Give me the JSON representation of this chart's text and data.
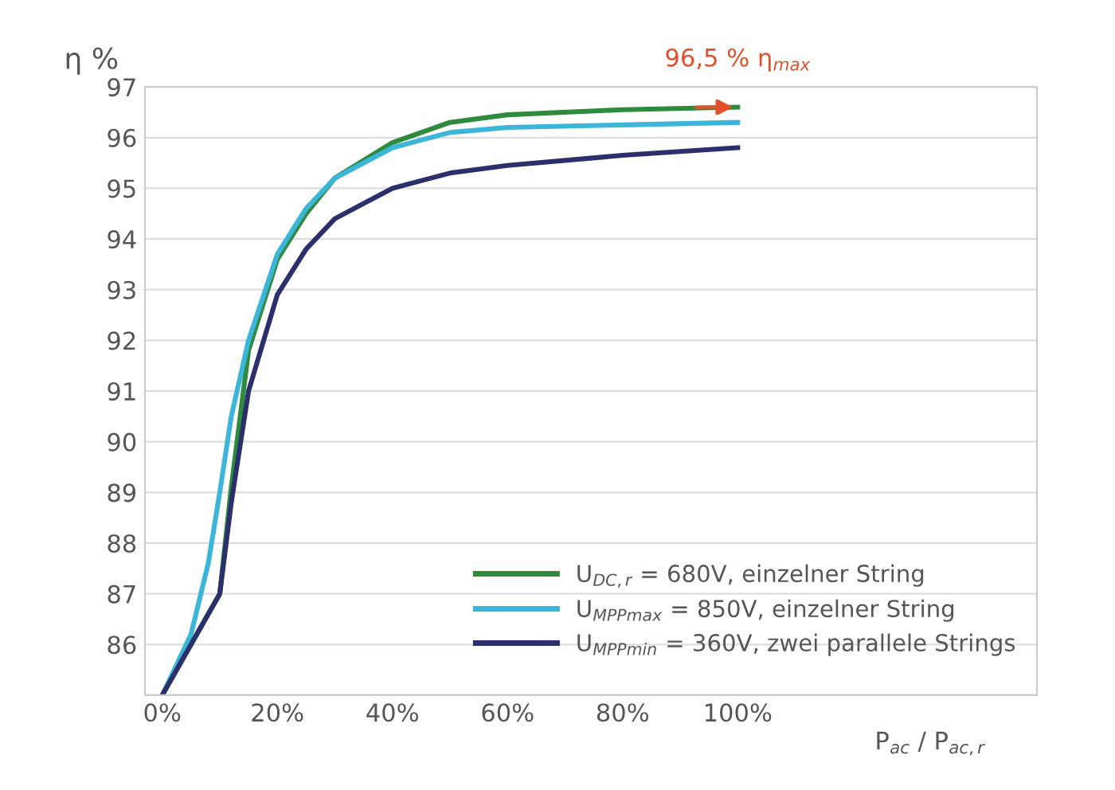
{
  "chart_data": {
    "type": "line",
    "ylabel": "η %",
    "xlabel": "P$_{ac}$ / P$_{ac,r}$",
    "xlim": [
      -3,
      152
    ],
    "xticks": [
      {
        "value": 0,
        "label": "0%"
      },
      {
        "value": 20,
        "label": "20%"
      },
      {
        "value": 40,
        "label": "40%"
      },
      {
        "value": 60,
        "label": "60%"
      },
      {
        "value": 80,
        "label": "80%"
      },
      {
        "value": 100,
        "label": "100%"
      }
    ],
    "ylim": [
      85,
      97
    ],
    "yticks": [
      {
        "value": 85,
        "label": null
      },
      86,
      87,
      88,
      89,
      90,
      91,
      92,
      93,
      94,
      95,
      96,
      97
    ],
    "grid": "y",
    "legend": "bottom right",
    "annotations": [
      {
        "text": "96,5 % η$_{max}$",
        "x": 100,
        "y": 96.6
      }
    ],
    "series": [
      {
        "name": "U$_{DC,r}$ = 680V, einzelner String",
        "color": "#2e8b3e",
        "x": [
          0,
          5,
          10,
          12,
          15,
          20,
          25,
          30,
          40,
          50,
          60,
          80,
          100
        ],
        "values": [
          85,
          86.0,
          87.0,
          89.1,
          91.8,
          93.6,
          94.5,
          95.2,
          95.9,
          96.3,
          96.45,
          96.55,
          96.6
        ]
      },
      {
        "name": "U$_{MPPmax}$ = 850V, einzelner String",
        "color": "#3bb5d8",
        "x": [
          0,
          5,
          8,
          10,
          12,
          15,
          20,
          25,
          30,
          40,
          50,
          60,
          80,
          100
        ],
        "values": [
          85,
          86.2,
          87.6,
          89.0,
          90.5,
          92.0,
          93.7,
          94.6,
          95.2,
          95.8,
          96.1,
          96.2,
          96.25,
          96.3
        ]
      },
      {
        "name": "U$_{MPPmin}$ = 360V, zwei parallele Strings",
        "color": "#2b2f6b",
        "x": [
          0,
          5,
          10,
          12,
          15,
          20,
          25,
          30,
          40,
          50,
          60,
          80,
          100
        ],
        "values": [
          85,
          86.0,
          87.0,
          88.8,
          91.0,
          92.9,
          93.8,
          94.4,
          95.0,
          95.3,
          95.45,
          95.65,
          95.8
        ]
      }
    ]
  }
}
